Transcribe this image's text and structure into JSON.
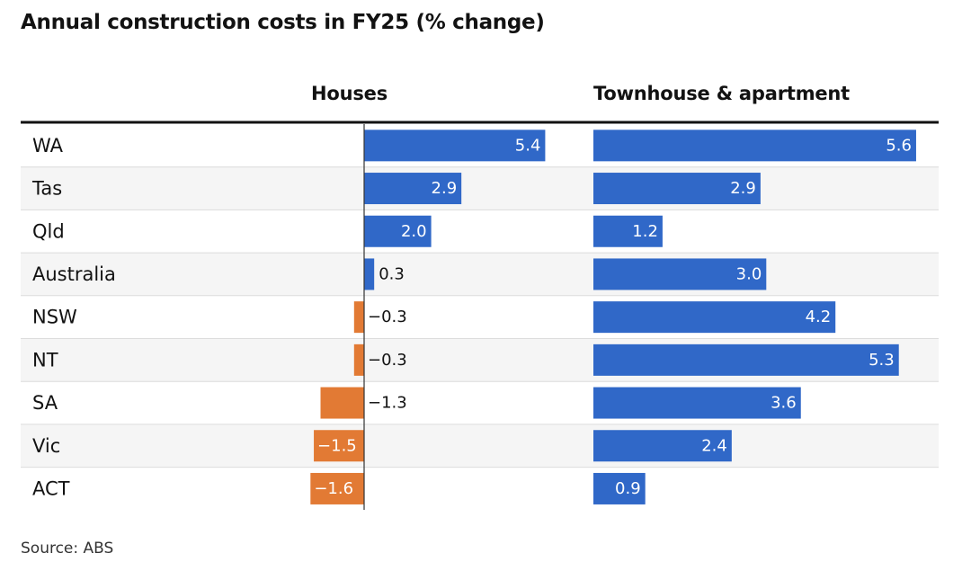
{
  "title": "Annual construction costs in FY25 (% change)",
  "source": "Source: ABS",
  "colors": {
    "positive": "#3068c8",
    "negative": "#e27a34",
    "row_alt": "#f5f5f5",
    "divider": "#dcdcdc",
    "header_rule": "#121212",
    "axis": "#333333"
  },
  "chart_data": [
    {
      "type": "bar",
      "orientation": "horizontal",
      "title": "Houses",
      "categories": [
        "WA",
        "Tas",
        "Qld",
        "Australia",
        "NSW",
        "NT",
        "SA",
        "Vic",
        "ACT"
      ],
      "values": [
        5.4,
        2.9,
        2.0,
        0.3,
        -0.3,
        -0.3,
        -1.3,
        -1.5,
        -1.6
      ],
      "labels": [
        "5.4",
        "2.9",
        "2.0",
        "0.3",
        "−0.3",
        "−0.3",
        "−1.3",
        "−1.5",
        "−1.6"
      ],
      "xlim": [
        -1.6,
        5.4
      ],
      "grid": false
    },
    {
      "type": "bar",
      "orientation": "horizontal",
      "title": "Townhouse & apartment",
      "categories": [
        "WA",
        "Tas",
        "Qld",
        "Australia",
        "NSW",
        "NT",
        "SA",
        "Vic",
        "ACT"
      ],
      "values": [
        5.6,
        2.9,
        1.2,
        3.0,
        4.2,
        5.3,
        3.6,
        2.4,
        0.9
      ],
      "labels": [
        "5.6",
        "2.9",
        "1.2",
        "3.0",
        "4.2",
        "5.3",
        "3.6",
        "2.4",
        "0.9"
      ],
      "xlim": [
        0,
        5.6
      ],
      "grid": false
    }
  ]
}
